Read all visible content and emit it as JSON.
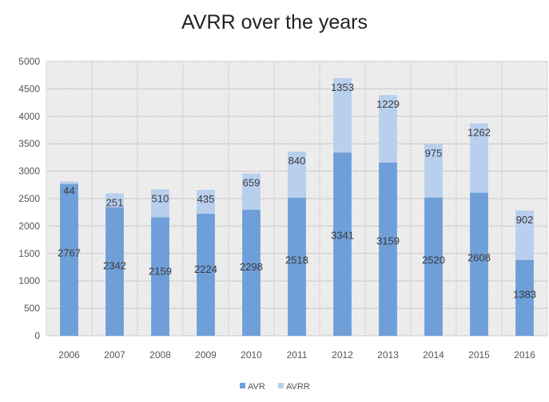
{
  "chart_data": {
    "type": "bar",
    "stacked": true,
    "title": "AVRR over the years",
    "xlabel": "",
    "ylabel": "",
    "categories": [
      "2006",
      "2007",
      "2008",
      "2009",
      "2010",
      "2011",
      "2012",
      "2013",
      "2014",
      "2015",
      "2016"
    ],
    "series": [
      {
        "name": "AVR",
        "color": "#6f9fd8",
        "values": [
          2767,
          2342,
          2159,
          2224,
          2298,
          2518,
          3341,
          3159,
          2520,
          2608,
          1383
        ]
      },
      {
        "name": "AVRR",
        "color": "#b9cfee",
        "values": [
          44,
          251,
          510,
          435,
          659,
          840,
          1353,
          1229,
          975,
          1262,
          902
        ]
      }
    ],
    "ylim": [
      0,
      5000
    ],
    "yticks": [
      0,
      500,
      1000,
      1500,
      2000,
      2500,
      3000,
      3500,
      4000,
      4500,
      5000
    ],
    "grid": true,
    "legend_position": "bottom"
  }
}
